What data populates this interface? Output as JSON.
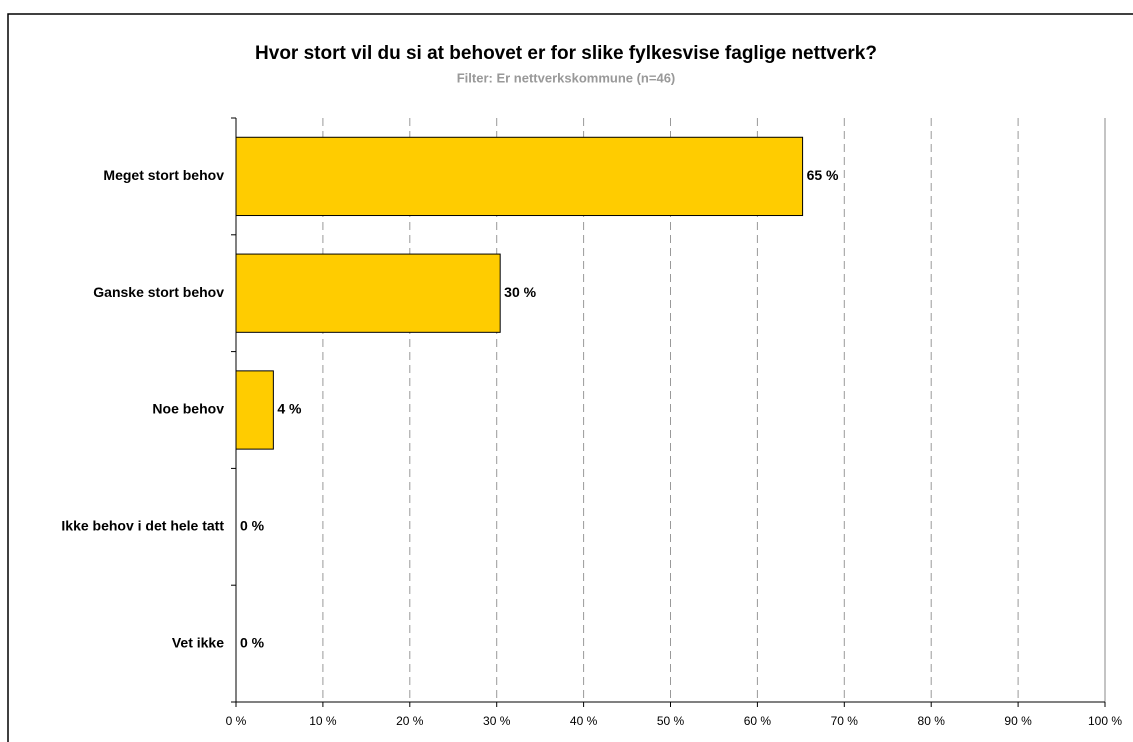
{
  "chart_data": {
    "type": "bar",
    "orientation": "horizontal",
    "title": "Hvor stort vil du si at behovet er for slike fylkesvise faglige nettverk?",
    "subtitle": "Filter: Er nettverkskommune (n=46)",
    "categories": [
      "Meget stort behov",
      "Ganske stort behov",
      "Noe behov",
      "Ikke behov i det hele tatt",
      "Vet ikke"
    ],
    "values": [
      65.2,
      30.4,
      4.3,
      0,
      0
    ],
    "value_labels": [
      "65 %",
      "30 %",
      "4 %",
      "0 %",
      "0 %"
    ],
    "color": "#ffcc00",
    "xlim": [
      0,
      100
    ],
    "xticks": [
      {
        "value": 0,
        "label": "0 %"
      },
      {
        "value": 10,
        "label": "10 %"
      },
      {
        "value": 20,
        "label": "20 %"
      },
      {
        "value": 30,
        "label": "30 %"
      },
      {
        "value": 40,
        "label": "40 %"
      },
      {
        "value": 50,
        "label": "50 %"
      },
      {
        "value": 60,
        "label": "60 %"
      },
      {
        "value": 70,
        "label": "70 %"
      },
      {
        "value": 80,
        "label": "80 %"
      },
      {
        "value": 90,
        "label": "90 %"
      },
      {
        "value": 100,
        "label": "100 %"
      }
    ],
    "grid": true
  }
}
